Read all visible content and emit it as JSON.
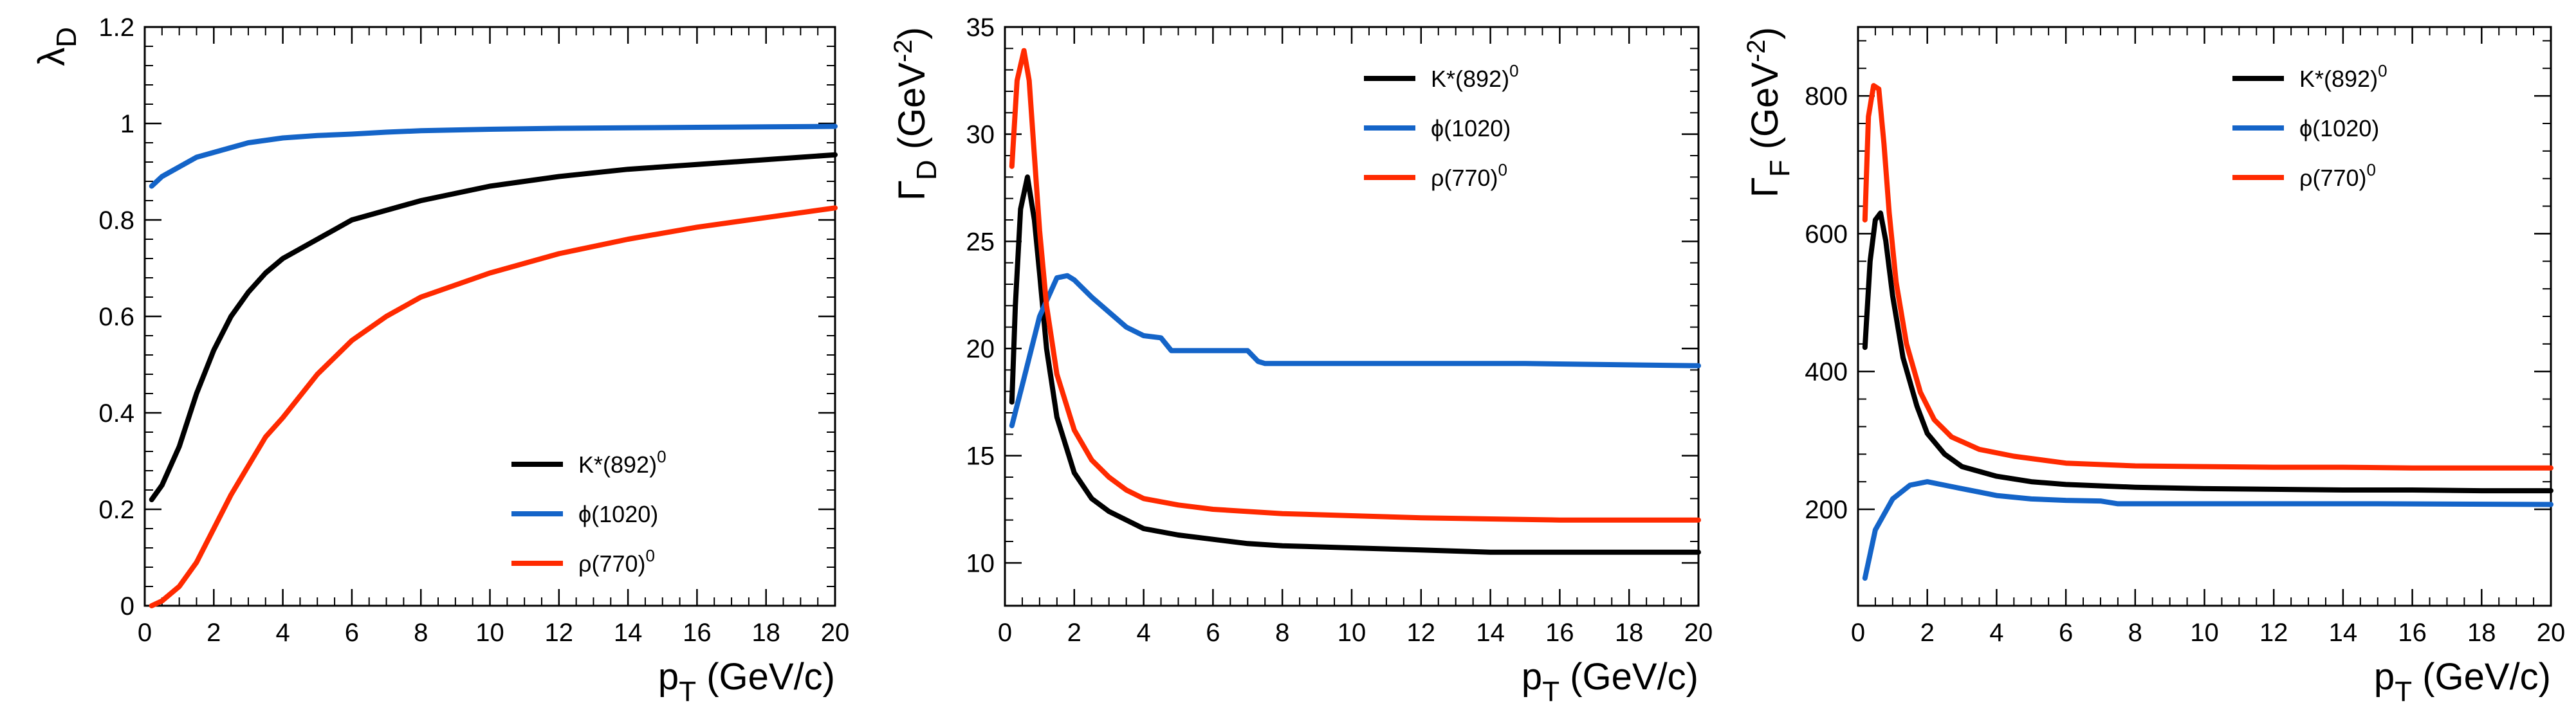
{
  "chart_data": [
    {
      "type": "line",
      "id": "lambda",
      "ylabel_main": "λ",
      "ylabel_sub": "D",
      "ylabel_unit": "",
      "xlabel_main": "p",
      "xlabel_sub": "T",
      "xlabel_unit": " (GeV/c)",
      "xlim": [
        0,
        20
      ],
      "ylim": [
        0,
        1.2
      ],
      "xticks": [
        0,
        2,
        4,
        6,
        8,
        10,
        12,
        14,
        16,
        18,
        20
      ],
      "yticks": [
        0,
        0.2,
        0.4,
        0.6,
        0.8,
        1,
        1.2
      ],
      "yticklabels": [
        "0",
        "0.2",
        "0.4",
        "0.6",
        "0.8",
        "1",
        "1.2"
      ],
      "legend_position": "bottom-right",
      "series": [
        {
          "name": "K*(892)",
          "sup": "0",
          "color": "#000000",
          "x": [
            0.2,
            0.5,
            1,
            1.5,
            2,
            2.5,
            3,
            3.5,
            4,
            5,
            6,
            7,
            8,
            10,
            12,
            14,
            16,
            18,
            20
          ],
          "y": [
            0.22,
            0.25,
            0.33,
            0.44,
            0.53,
            0.6,
            0.65,
            0.69,
            0.72,
            0.76,
            0.8,
            0.82,
            0.84,
            0.87,
            0.89,
            0.905,
            0.915,
            0.925,
            0.935
          ]
        },
        {
          "name": "ϕ(1020)",
          "sup": "",
          "color": "#1464c8",
          "x": [
            0.2,
            0.5,
            1,
            1.5,
            2,
            2.5,
            3,
            4,
            5,
            6,
            7,
            8,
            10,
            12,
            14,
            16,
            18,
            20
          ],
          "y": [
            0.87,
            0.89,
            0.91,
            0.93,
            0.94,
            0.95,
            0.96,
            0.97,
            0.975,
            0.978,
            0.982,
            0.985,
            0.988,
            0.99,
            0.991,
            0.992,
            0.993,
            0.994
          ]
        },
        {
          "name": "ρ(770)",
          "sup": "0",
          "color": "#ff2a00",
          "x": [
            0.2,
            0.5,
            1,
            1.5,
            2,
            2.5,
            3,
            3.5,
            4,
            5,
            6,
            7,
            8,
            10,
            12,
            14,
            16,
            18,
            20
          ],
          "y": [
            0.0,
            0.01,
            0.04,
            0.09,
            0.16,
            0.23,
            0.29,
            0.35,
            0.39,
            0.48,
            0.55,
            0.6,
            0.64,
            0.69,
            0.73,
            0.76,
            0.785,
            0.805,
            0.825
          ]
        }
      ]
    },
    {
      "type": "line",
      "id": "gammaD",
      "ylabel_main": "Γ",
      "ylabel_sub": "D",
      "ylabel_unit": " (GeV",
      "ylabel_unit_sup": "-2",
      "ylabel_unit_end": ")",
      "xlabel_main": "p",
      "xlabel_sub": "T",
      "xlabel_unit": " (GeV/c)",
      "xlim": [
        0,
        20
      ],
      "ylim": [
        8,
        35
      ],
      "xticks": [
        0,
        2,
        4,
        6,
        8,
        10,
        12,
        14,
        16,
        18,
        20
      ],
      "yticks": [
        10,
        15,
        20,
        25,
        30,
        35
      ],
      "yticklabels": [
        "10",
        "15",
        "20",
        "25",
        "30",
        "35"
      ],
      "legend_position": "top-right",
      "series": [
        {
          "name": "K*(892)",
          "sup": "0",
          "color": "#000000",
          "x": [
            0.2,
            0.3,
            0.45,
            0.65,
            0.85,
            1.0,
            1.2,
            1.5,
            2.0,
            2.5,
            3.0,
            3.5,
            4.0,
            5,
            6,
            7,
            8,
            10,
            12,
            14,
            16,
            18,
            20
          ],
          "y": [
            17.5,
            22,
            26.5,
            28,
            26,
            23.5,
            20,
            16.8,
            14.2,
            13.0,
            12.4,
            12.0,
            11.6,
            11.3,
            11.1,
            10.9,
            10.8,
            10.7,
            10.6,
            10.5,
            10.5,
            10.5,
            10.5
          ]
        },
        {
          "name": "ϕ(1020)",
          "sup": "",
          "color": "#1464c8",
          "x": [
            0.2,
            0.5,
            1.0,
            1.5,
            1.8,
            2.0,
            2.5,
            3.0,
            3.5,
            4.0,
            4.5,
            4.8,
            5.5,
            7.0,
            7.3,
            7.5,
            10,
            15,
            20
          ],
          "y": [
            16.4,
            18.3,
            21.5,
            23.3,
            23.4,
            23.2,
            22.4,
            21.7,
            21.0,
            20.6,
            20.5,
            19.9,
            19.9,
            19.9,
            19.4,
            19.3,
            19.3,
            19.3,
            19.2
          ]
        },
        {
          "name": "ρ(770)",
          "sup": "0",
          "color": "#ff2a00",
          "x": [
            0.2,
            0.35,
            0.55,
            0.7,
            0.85,
            1.0,
            1.2,
            1.5,
            2.0,
            2.5,
            3.0,
            3.5,
            4.0,
            5,
            6,
            8,
            10,
            12,
            14,
            16,
            18,
            20
          ],
          "y": [
            28.5,
            32.5,
            33.9,
            32.5,
            29,
            25.5,
            22,
            18.8,
            16.2,
            14.8,
            14.0,
            13.4,
            13.0,
            12.7,
            12.5,
            12.3,
            12.2,
            12.1,
            12.05,
            12.0,
            12.0,
            12.0
          ]
        }
      ]
    },
    {
      "type": "line",
      "id": "gammaF",
      "ylabel_main": "Γ",
      "ylabel_sub": "F",
      "ylabel_unit": " (GeV",
      "ylabel_unit_sup": "-2",
      "ylabel_unit_end": ")",
      "xlabel_main": "p",
      "xlabel_sub": "T",
      "xlabel_unit": " (GeV/c)",
      "xlim": [
        0,
        20
      ],
      "ylim": [
        60,
        900
      ],
      "xticks": [
        0,
        2,
        4,
        6,
        8,
        10,
        12,
        14,
        16,
        18,
        20
      ],
      "yticks": [
        200,
        400,
        600,
        800
      ],
      "yticklabels": [
        "200",
        "400",
        "600",
        "800"
      ],
      "legend_position": "top-right",
      "series": [
        {
          "name": "K*(892)",
          "sup": "0",
          "color": "#000000",
          "x": [
            0.2,
            0.35,
            0.5,
            0.65,
            0.8,
            1.0,
            1.3,
            1.7,
            2.0,
            2.5,
            3.0,
            4.0,
            5,
            6,
            8,
            10,
            12,
            14,
            16,
            18,
            20
          ],
          "y": [
            435,
            560,
            620,
            630,
            590,
            510,
            420,
            350,
            310,
            280,
            262,
            248,
            240,
            236,
            232,
            230,
            229,
            228,
            228,
            227,
            227
          ]
        },
        {
          "name": "ϕ(1020)",
          "sup": "",
          "color": "#1464c8",
          "x": [
            0.2,
            0.5,
            1.0,
            1.5,
            2.0,
            2.5,
            3.0,
            3.5,
            4.0,
            5,
            6,
            7,
            7.5,
            10,
            15,
            20
          ],
          "y": [
            100,
            170,
            215,
            235,
            240,
            235,
            230,
            225,
            220,
            215,
            213,
            212,
            208,
            208,
            208,
            207
          ]
        },
        {
          "name": "ρ(770)",
          "sup": "0",
          "color": "#ff2a00",
          "x": [
            0.2,
            0.3,
            0.45,
            0.6,
            0.75,
            0.9,
            1.1,
            1.4,
            1.8,
            2.2,
            2.7,
            3.5,
            4.5,
            6,
            8,
            10,
            12,
            14,
            16,
            18,
            20
          ],
          "y": [
            620,
            770,
            815,
            810,
            730,
            630,
            530,
            440,
            370,
            330,
            305,
            287,
            277,
            267,
            263,
            262,
            261,
            261,
            260,
            260,
            260
          ]
        }
      ]
    }
  ]
}
